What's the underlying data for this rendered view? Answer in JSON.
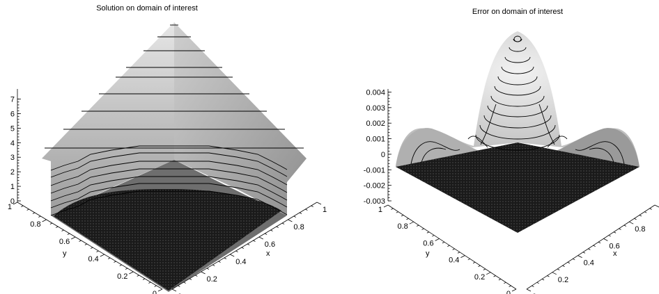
{
  "chart_data": [
    {
      "type": "surface3d",
      "title": "Solution on domain of interest",
      "xlabel": "x",
      "ylabel": "y",
      "zlabel": "",
      "x_ticks": [
        "0",
        "0.2",
        "0.4",
        "0.6",
        "0.8",
        "1"
      ],
      "y_ticks": [
        "0",
        "0.2",
        "0.4",
        "0.6",
        "0.8",
        "1"
      ],
      "z_ticks": [
        "0",
        "1",
        "2",
        "3",
        "4",
        "5",
        "6",
        "7"
      ],
      "zlim": [
        0,
        7.6
      ],
      "surface": "pyramid-shaped solution, maximum ~7.6 at apex, flat zero region (quarter disk) over domain of interest",
      "contour_levels": [
        0.3,
        0.6,
        0.9,
        1.2,
        1.5,
        1.8,
        2.1,
        3.5,
        4.6,
        5.3,
        6.1,
        6.6,
        7.5
      ]
    },
    {
      "type": "surface3d",
      "title": "Error on domain of interest",
      "xlabel": "x",
      "ylabel": "y",
      "zlabel": "",
      "x_ticks": [
        "0",
        "0.2",
        "0.4",
        "0.6",
        "0.8",
        "1"
      ],
      "y_ticks": [
        "0",
        "0.2",
        "0.4",
        "0.6",
        "0.8",
        "1"
      ],
      "z_ticks": [
        "-0.003",
        "-0.002",
        "-0.001",
        "0",
        "0.001",
        "0.002",
        "0.003",
        "0.004"
      ],
      "zlim": [
        -0.003,
        0.0042
      ],
      "surface": "error surface: central peak ~0.0042, side bumps ~0.001, dips toward -0.003 at edges"
    }
  ]
}
